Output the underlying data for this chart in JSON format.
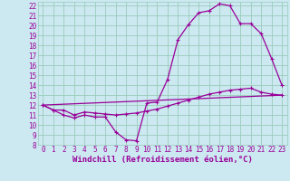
{
  "background_color": "#cce8f0",
  "grid_color": "#99ccbb",
  "line_color": "#990099",
  "marker": "+",
  "xlim": [
    -0.5,
    23.5
  ],
  "ylim": [
    8,
    22.4
  ],
  "xlabel": "Windchill (Refroidissement éolien,°C)",
  "xticks": [
    0,
    1,
    2,
    3,
    4,
    5,
    6,
    7,
    8,
    9,
    10,
    11,
    12,
    13,
    14,
    15,
    16,
    17,
    18,
    19,
    20,
    21,
    22,
    23
  ],
  "yticks": [
    8,
    9,
    10,
    11,
    12,
    13,
    14,
    15,
    16,
    17,
    18,
    19,
    20,
    21,
    22
  ],
  "line1_x": [
    0,
    1,
    2,
    3,
    4,
    5,
    6,
    7,
    8,
    9,
    10,
    11,
    12,
    13,
    14,
    15,
    16,
    17,
    18,
    19,
    20,
    21,
    22,
    23
  ],
  "line1_y": [
    12,
    11.5,
    11,
    10.7,
    11,
    10.8,
    10.8,
    9.3,
    8.5,
    8.4,
    12.2,
    12.3,
    14.6,
    18.6,
    20.1,
    21.3,
    21.5,
    22.2,
    22.0,
    20.2,
    20.2,
    19.2,
    16.7,
    14.0
  ],
  "line2_x": [
    0,
    1,
    2,
    3,
    4,
    5,
    6,
    7,
    8,
    9,
    10,
    11,
    12,
    13,
    14,
    15,
    16,
    17,
    18,
    19,
    20,
    21,
    22,
    23
  ],
  "line2_y": [
    12,
    11.5,
    11.5,
    11.0,
    11.3,
    11.2,
    11.1,
    11.0,
    11.1,
    11.2,
    11.4,
    11.6,
    11.9,
    12.2,
    12.5,
    12.8,
    13.1,
    13.3,
    13.5,
    13.6,
    13.7,
    13.3,
    13.1,
    13.0
  ],
  "line3_x": [
    0,
    23
  ],
  "line3_y": [
    12,
    13.0
  ],
  "tick_fontsize": 5.5,
  "xlabel_fontsize": 6.5
}
